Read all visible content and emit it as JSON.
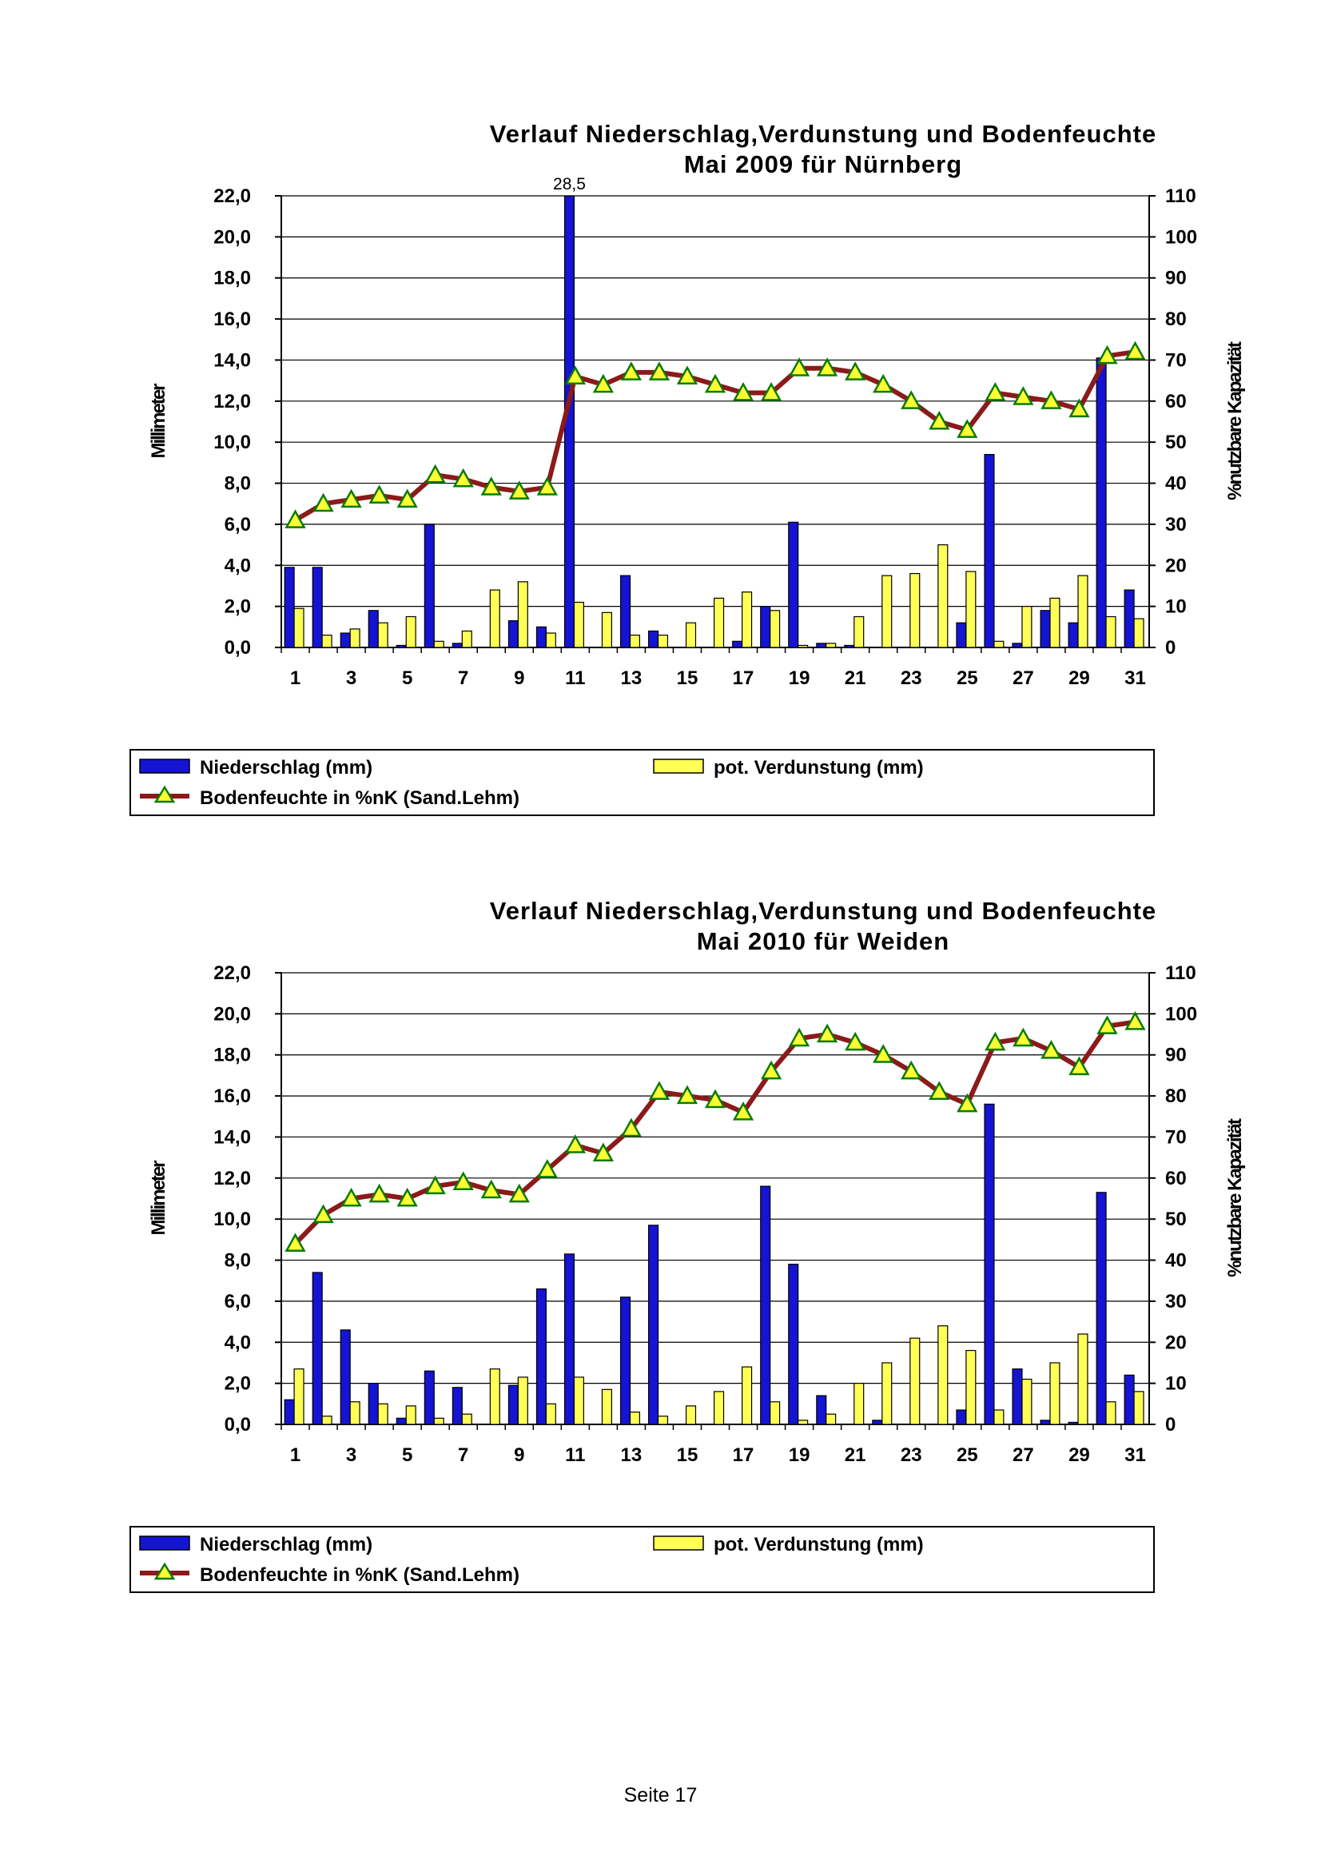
{
  "page": {
    "footer": "Seite 17"
  },
  "legend": {
    "precip": "Niederschlag (mm)",
    "evap": "pot. Verdunstung (mm)",
    "moisture": "Bodenfeuchte in %nK (Sand.Lehm)"
  },
  "colors": {
    "precip": "#1414d2",
    "evap": "#ffff55",
    "moisture_line": "#8b1a1a",
    "moisture_marker": "#ffff33",
    "marker_edge": "#0a7a0a"
  },
  "chart_data": [
    {
      "type": "bar",
      "title": "Verlauf Niederschlag,Verdunstung und Bodenfeuchte",
      "subtitle": "Mai 2009 für Nürnberg",
      "ylabel": "Millimeter",
      "y2label": "%nutzbare Kapazität",
      "ylim": [
        0,
        22
      ],
      "y2lim": [
        0,
        110
      ],
      "y_ticks": [
        "0,0",
        "2,0",
        "4,0",
        "6,0",
        "8,0",
        "10,0",
        "12,0",
        "14,0",
        "16,0",
        "18,0",
        "20,0",
        "22,0"
      ],
      "y2_ticks": [
        "0",
        "10",
        "20",
        "30",
        "40",
        "50",
        "60",
        "70",
        "80",
        "90",
        "100",
        "110"
      ],
      "x_ticks": [
        "1",
        "3",
        "5",
        "7",
        "9",
        "11",
        "13",
        "15",
        "17",
        "19",
        "21",
        "23",
        "25",
        "27",
        "29",
        "31"
      ],
      "grid": true,
      "legend_position": "bottom",
      "overflow_labels": [
        {
          "day": 11,
          "text": "28,5"
        }
      ],
      "categories": [
        1,
        2,
        3,
        4,
        5,
        6,
        7,
        8,
        9,
        10,
        11,
        12,
        13,
        14,
        15,
        16,
        17,
        18,
        19,
        20,
        21,
        22,
        23,
        24,
        25,
        26,
        27,
        28,
        29,
        30,
        31
      ],
      "series": [
        {
          "name": "Niederschlag (mm)",
          "kind": "bar",
          "values": [
            3.9,
            3.9,
            0.7,
            1.8,
            0.1,
            6.0,
            0.2,
            0,
            1.3,
            1.0,
            28.5,
            0,
            3.5,
            0.8,
            0,
            0,
            0.3,
            2.0,
            6.1,
            0.2,
            0.1,
            0,
            0,
            0,
            1.2,
            9.4,
            0.2,
            1.8,
            1.2,
            14.1,
            2.8
          ]
        },
        {
          "name": "pot. Verdunstung (mm)",
          "kind": "bar",
          "values": [
            1.9,
            0.6,
            0.9,
            1.2,
            1.5,
            0.3,
            0.8,
            2.8,
            3.2,
            0.7,
            2.2,
            1.7,
            0.6,
            0.6,
            1.2,
            2.4,
            2.7,
            1.8,
            0.1,
            0.2,
            1.5,
            3.5,
            3.6,
            5.0,
            3.7,
            0.3,
            2.0,
            2.4,
            3.5,
            1.5,
            1.4
          ]
        },
        {
          "name": "Bodenfeuchte in %nK (Sand.Lehm)",
          "kind": "line",
          "axis": "y2",
          "values": [
            31,
            35,
            36,
            37,
            36,
            42,
            41,
            39,
            38,
            39,
            66,
            64,
            67,
            67,
            66,
            64,
            62,
            62,
            68,
            68,
            67,
            64,
            60,
            55,
            53,
            62,
            61,
            60,
            58,
            71,
            72
          ]
        }
      ]
    },
    {
      "type": "bar",
      "title": "Verlauf Niederschlag,Verdunstung und Bodenfeuchte",
      "subtitle": "Mai 2010 für Weiden",
      "ylabel": "Millimeter",
      "y2label": "%nutzbare Kapazität",
      "ylim": [
        0,
        22
      ],
      "y2lim": [
        0,
        110
      ],
      "y_ticks": [
        "0,0",
        "2,0",
        "4,0",
        "6,0",
        "8,0",
        "10,0",
        "12,0",
        "14,0",
        "16,0",
        "18,0",
        "20,0",
        "22,0"
      ],
      "y2_ticks": [
        "0",
        "10",
        "20",
        "30",
        "40",
        "50",
        "60",
        "70",
        "80",
        "90",
        "100",
        "110"
      ],
      "x_ticks": [
        "1",
        "3",
        "5",
        "7",
        "9",
        "11",
        "13",
        "15",
        "17",
        "19",
        "21",
        "23",
        "25",
        "27",
        "29",
        "31"
      ],
      "grid": true,
      "legend_position": "bottom",
      "overflow_labels": [],
      "categories": [
        1,
        2,
        3,
        4,
        5,
        6,
        7,
        8,
        9,
        10,
        11,
        12,
        13,
        14,
        15,
        16,
        17,
        18,
        19,
        20,
        21,
        22,
        23,
        24,
        25,
        26,
        27,
        28,
        29,
        30,
        31
      ],
      "series": [
        {
          "name": "Niederschlag (mm)",
          "kind": "bar",
          "values": [
            1.2,
            7.4,
            4.6,
            2.0,
            0.3,
            2.6,
            1.8,
            0,
            1.9,
            6.6,
            8.3,
            0,
            6.2,
            9.7,
            0,
            0,
            0,
            11.6,
            7.8,
            1.4,
            0,
            0.2,
            0,
            0,
            0.7,
            15.6,
            2.7,
            0.2,
            0.1,
            11.3,
            2.4
          ]
        },
        {
          "name": "pot. Verdunstung (mm)",
          "kind": "bar",
          "values": [
            2.7,
            0.4,
            1.1,
            1.0,
            0.9,
            0.3,
            0.5,
            2.7,
            2.3,
            1.0,
            2.3,
            1.7,
            0.6,
            0.4,
            0.9,
            1.6,
            2.8,
            1.1,
            0.2,
            0.5,
            2.0,
            3.0,
            4.2,
            4.8,
            3.6,
            0.7,
            2.2,
            3.0,
            4.4,
            1.1,
            1.6
          ]
        },
        {
          "name": "Bodenfeuchte in %nK (Sand.Lehm)",
          "kind": "line",
          "axis": "y2",
          "values": [
            44,
            51,
            55,
            56,
            55,
            58,
            59,
            57,
            56,
            62,
            68,
            66,
            72,
            81,
            80,
            79,
            76,
            86,
            94,
            95,
            93,
            90,
            86,
            81,
            78,
            93,
            94,
            91,
            87,
            97,
            98
          ]
        }
      ]
    }
  ]
}
